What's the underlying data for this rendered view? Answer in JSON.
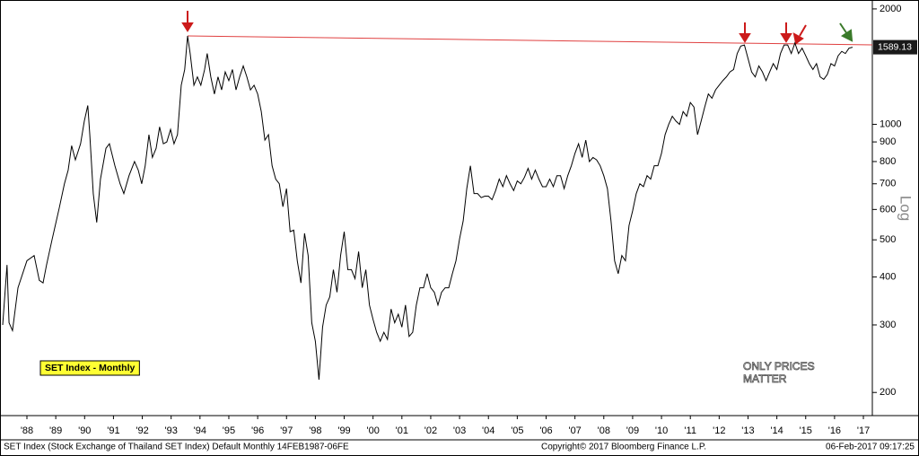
{
  "chart_data": {
    "type": "line",
    "log_scale": true,
    "ylabel": "Log",
    "legend": "bottom-left",
    "series": [
      {
        "name": "SET Index - Monthly",
        "color": "#000000",
        "x": [
          1987.66,
          1987.81,
          1987.88,
          1988.0,
          1988.19,
          1988.5,
          1988.75,
          1988.93,
          1989.06,
          1989.18,
          1989.37,
          1989.62,
          1989.8,
          1989.93,
          1990.05,
          1990.18,
          1990.36,
          1990.49,
          1990.61,
          1990.68,
          1990.8,
          1990.92,
          1991.05,
          1991.24,
          1991.36,
          1991.55,
          1991.73,
          1991.86,
          1992.04,
          1992.23,
          1992.36,
          1992.48,
          1992.6,
          1992.73,
          1992.85,
          1992.98,
          1993.1,
          1993.23,
          1993.35,
          1993.48,
          1993.6,
          1993.72,
          1993.85,
          1993.97,
          1994.07,
          1994.16,
          1994.29,
          1994.41,
          1994.53,
          1994.66,
          1994.75,
          1994.875,
          1995,
          1995.125,
          1995.25,
          1995.375,
          1995.5,
          1995.625,
          1995.75,
          1995.875,
          1996,
          1996.125,
          1996.25,
          1996.375,
          1996.5,
          1996.625,
          1996.75,
          1996.875,
          1997,
          1997.125,
          1997.25,
          1997.375,
          1997.5,
          1997.625,
          1997.75,
          1997.875,
          1998,
          1998.125,
          1998.25,
          1998.375,
          1998.5,
          1998.625,
          1998.75,
          1998.875,
          1999,
          1999.125,
          1999.25,
          1999.375,
          1999.5,
          1999.625,
          1999.75,
          1999.875,
          2000,
          2000.125,
          2000.25,
          2000.375,
          2000.5,
          2000.625,
          2000.75,
          2000.875,
          2001,
          2001.125,
          2001.25,
          2001.375,
          2001.5,
          2001.625,
          2001.75,
          2001.875,
          2002,
          2002.125,
          2002.25,
          2002.375,
          2002.5,
          2002.625,
          2002.75,
          2002.875,
          2003,
          2003.125,
          2003.25,
          2003.375,
          2003.5,
          2003.625,
          2003.75,
          2003.875,
          2004,
          2004.125,
          2004.25,
          2004.375,
          2004.5,
          2004.625,
          2004.75,
          2004.875,
          2005,
          2005.125,
          2005.25,
          2005.375,
          2005.5,
          2005.625,
          2005.75,
          2005.875,
          2006,
          2006.125,
          2006.25,
          2006.375,
          2006.5,
          2006.625,
          2006.75,
          2006.875,
          2007,
          2007.125,
          2007.25,
          2007.375,
          2007.5,
          2007.625,
          2007.75,
          2007.875,
          2008,
          2008.125,
          2008.25,
          2008.375,
          2008.5,
          2008.625,
          2008.75,
          2008.875,
          2009,
          2009.125,
          2009.25,
          2009.375,
          2009.5,
          2009.625,
          2009.75,
          2009.875,
          2010,
          2010.125,
          2010.25,
          2010.375,
          2010.5,
          2010.625,
          2010.75,
          2010.875,
          2011,
          2011.125,
          2011.25,
          2011.375,
          2011.5,
          2011.625,
          2011.75,
          2011.875,
          2012,
          2012.125,
          2012.25,
          2012.375,
          2012.5,
          2012.625,
          2012.75,
          2012.875,
          2013,
          2013.125,
          2013.25,
          2013.375,
          2013.5,
          2013.625,
          2013.75,
          2013.875,
          2014,
          2014.125,
          2014.25,
          2014.375,
          2014.5,
          2014.625,
          2014.75,
          2014.875,
          2015,
          2015.125,
          2015.25,
          2015.375,
          2015.5,
          2015.625,
          2015.75,
          2015.875,
          2016,
          2016.125,
          2016.25,
          2016.375,
          2016.5,
          2016.625,
          2016.75,
          2016.875,
          2017,
          2017.125
        ],
        "values": [
          300,
          430,
          304,
          290,
          375,
          441,
          455,
          392,
          386,
          430,
          500,
          605,
          700,
          760,
          880,
          808,
          890,
          1020,
          1120,
          940,
          660,
          555,
          720,
          866,
          890,
          780,
          700,
          660,
          735,
          800,
          760,
          700,
          780,
          940,
          820,
          866,
          985,
          890,
          900,
          970,
          890,
          940,
          1265,
          1390,
          1700,
          1530,
          1265,
          1330,
          1265,
          1390,
          1530,
          1330,
          1200,
          1330,
          1230,
          1370,
          1300,
          1390,
          1230,
          1330,
          1420,
          1330,
          1230,
          1265,
          1200,
          1080,
          910,
          940,
          780,
          720,
          700,
          610,
          680,
          525,
          530,
          440,
          386,
          520,
          455,
          304,
          272,
          216,
          296,
          338,
          355,
          418,
          365,
          455,
          525,
          418,
          418,
          396,
          466,
          375,
          418,
          338,
          310,
          287,
          272,
          287,
          275,
          330,
          304,
          320,
          296,
          338,
          280,
          287,
          338,
          375,
          375,
          408,
          375,
          365,
          338,
          365,
          375,
          375,
          408,
          441,
          503,
          560,
          680,
          780,
          660,
          660,
          644,
          650,
          650,
          636,
          672,
          720,
          688,
          735,
          700,
          672,
          712,
          700,
          728,
          768,
          720,
          760,
          720,
          688,
          688,
          720,
          688,
          735,
          735,
          680,
          735,
          780,
          840,
          890,
          820,
          910,
          800,
          820,
          808,
          780,
          735,
          680,
          560,
          441,
          408,
          455,
          441,
          545,
          595,
          660,
          700,
          688,
          735,
          720,
          780,
          780,
          840,
          940,
          1000,
          1050,
          1020,
          1000,
          1080,
          1050,
          1140,
          1110,
          940,
          1020,
          1110,
          1200,
          1170,
          1230,
          1265,
          1300,
          1330,
          1370,
          1390,
          1530,
          1600,
          1610,
          1485,
          1370,
          1330,
          1420,
          1370,
          1300,
          1370,
          1440,
          1390,
          1530,
          1610,
          1610,
          1530,
          1630,
          1530,
          1580,
          1510,
          1440,
          1390,
          1440,
          1330,
          1310,
          1350,
          1440,
          1420,
          1510,
          1550,
          1530,
          1580,
          1589.13
        ]
      }
    ],
    "xlim": [
      1987.66,
      2017.81
    ],
    "xticks": [
      {
        "value": 1988.5,
        "label": "'88"
      },
      {
        "value": 1989.5,
        "label": "'89"
      },
      {
        "value": 1990.5,
        "label": "'90"
      },
      {
        "value": 1991.5,
        "label": "'91"
      },
      {
        "value": 1992.5,
        "label": "'92"
      },
      {
        "value": 1993.5,
        "label": "'93"
      },
      {
        "value": 1994.5,
        "label": "'94"
      },
      {
        "value": 1995.5,
        "label": "'95"
      },
      {
        "value": 1996.5,
        "label": "'96"
      },
      {
        "value": 1997.5,
        "label": "'97"
      },
      {
        "value": 1998.5,
        "label": "'98"
      },
      {
        "value": 1999.5,
        "label": "'99"
      },
      {
        "value": 2000.5,
        "label": "'00"
      },
      {
        "value": 2001.5,
        "label": "'01"
      },
      {
        "value": 2002.5,
        "label": "'02"
      },
      {
        "value": 2003.5,
        "label": "'03"
      },
      {
        "value": 2004.5,
        "label": "'04"
      },
      {
        "value": 2005.5,
        "label": "'05"
      },
      {
        "value": 2006.5,
        "label": "'06"
      },
      {
        "value": 2007.5,
        "label": "'07"
      },
      {
        "value": 2008.5,
        "label": "'08"
      },
      {
        "value": 2009.5,
        "label": "'09"
      },
      {
        "value": 2010.5,
        "label": "'10"
      },
      {
        "value": 2011.5,
        "label": "'11"
      },
      {
        "value": 2012.5,
        "label": "'12"
      },
      {
        "value": 2013.5,
        "label": "'13"
      },
      {
        "value": 2014.5,
        "label": "'14"
      },
      {
        "value": 2015.5,
        "label": "'15"
      },
      {
        "value": 2016.5,
        "label": "'16"
      },
      {
        "value": 2017.5,
        "label": "'17"
      }
    ],
    "ylim": [
      175,
      2076
    ],
    "yticks": [
      200,
      300,
      400,
      500,
      600,
      700,
      800,
      900,
      1000,
      2000
    ],
    "watermark": [
      "ONLY PRICES",
      "MATTER"
    ],
    "footer": [
      "SET Index (Stock Exchange of Thailand SET Index) Default  Monthly 14FEB1987-06FE",
      "Copyright© 2017 Bloomberg Finance L.P.",
      "06-Feb-2017 09:17:25"
    ]
  }
}
